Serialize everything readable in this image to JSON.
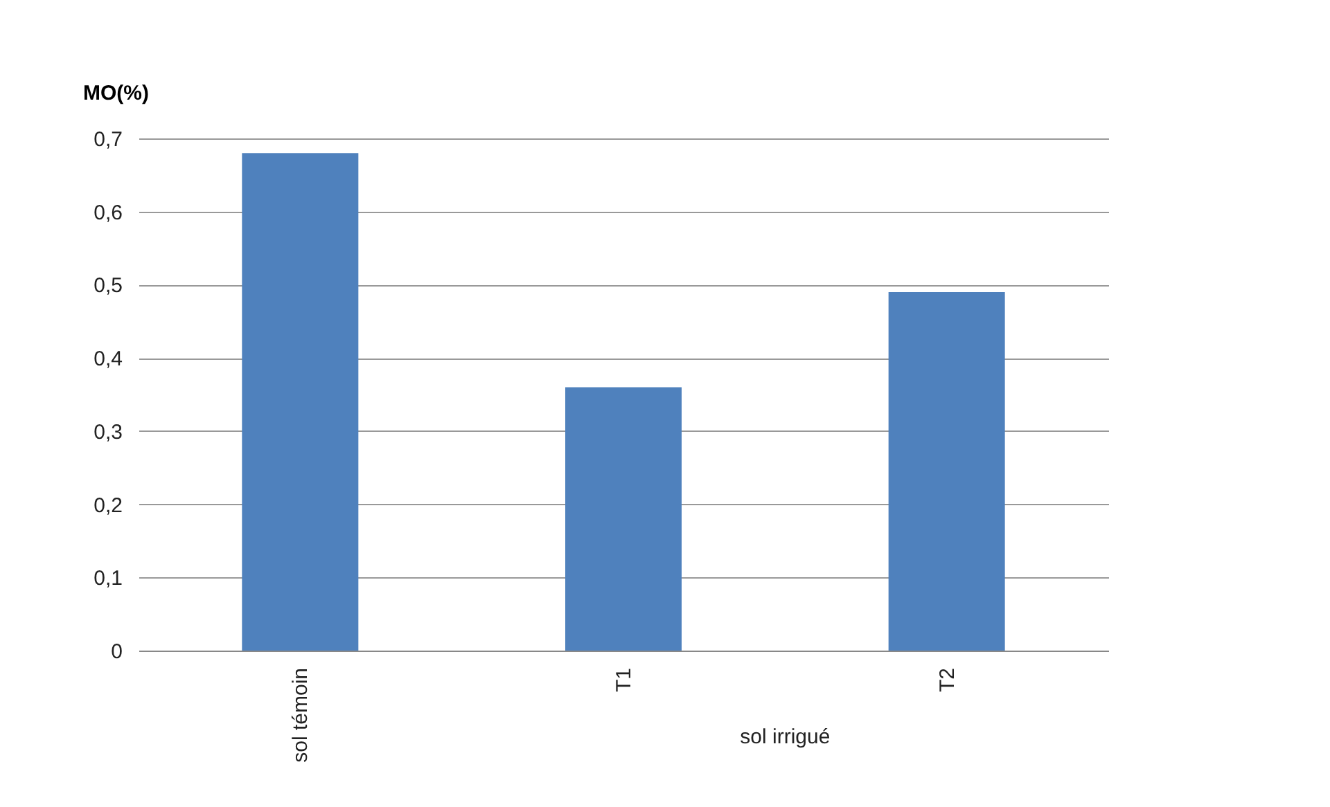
{
  "chart_data": {
    "type": "bar",
    "ylabel": "MO(%)",
    "categories": [
      "sol témoin",
      "T1",
      "T2"
    ],
    "values": [
      0.68,
      0.36,
      0.49
    ],
    "color": "#4f81bd",
    "ylim": [
      0,
      0.7
    ],
    "yticks": [
      0,
      {
        "value": 0.1,
        "label": "0,1"
      },
      {
        "value": 0.2,
        "label": "0,2"
      },
      {
        "value": 0.3,
        "label": "0,3"
      },
      {
        "value": 0.4,
        "label": "0,4"
      },
      {
        "value": 0.5,
        "label": "0,5"
      },
      {
        "value": 0.6,
        "label": "0,6"
      },
      {
        "value": 0.7,
        "label": "0,7"
      }
    ],
    "grid": "y",
    "annotations": [
      "sol irrigué"
    ]
  }
}
